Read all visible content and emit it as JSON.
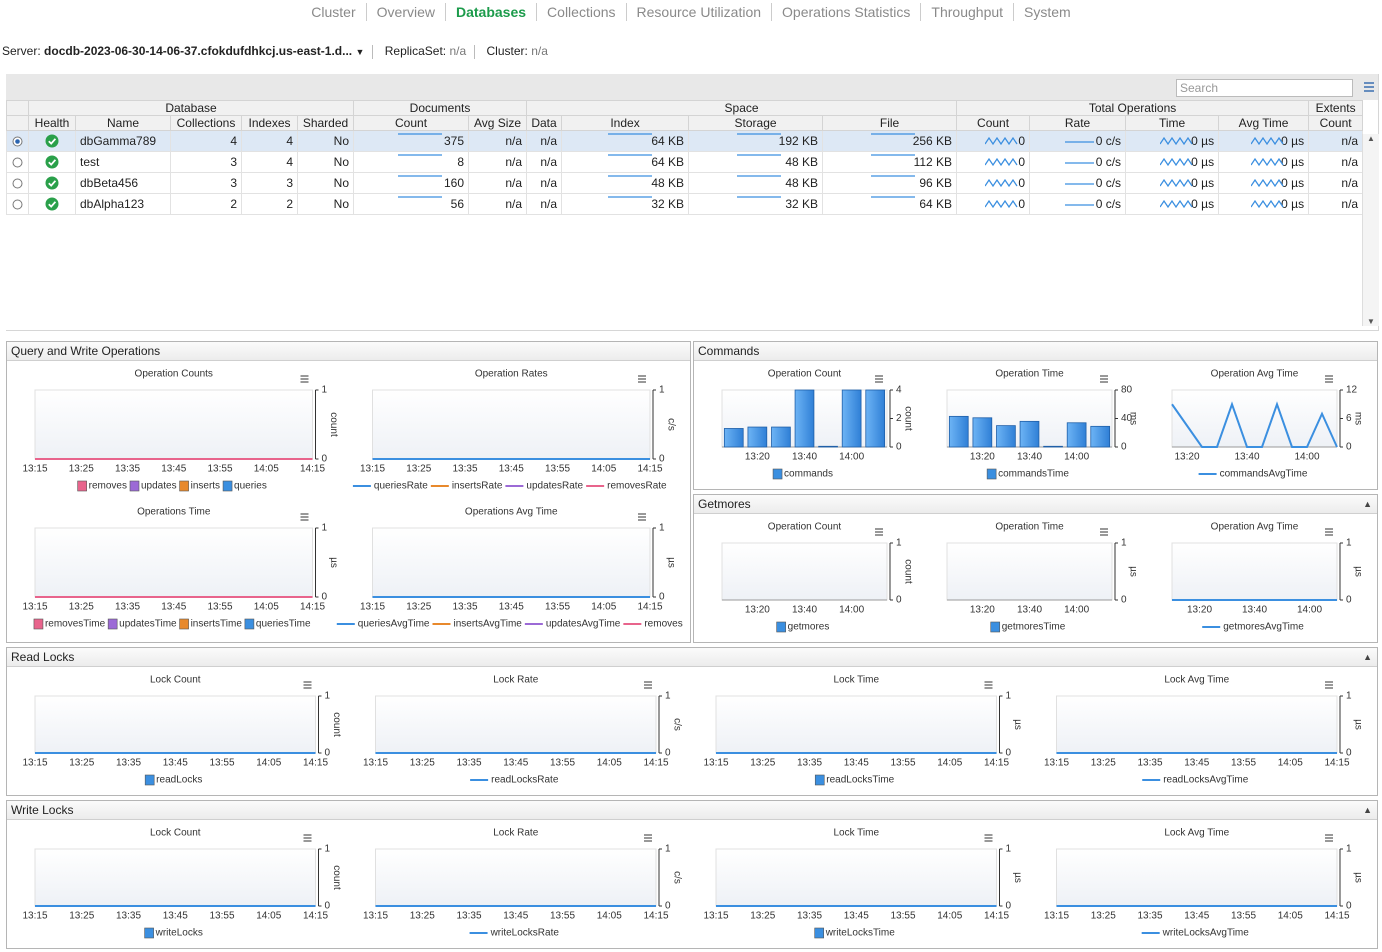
{
  "nav": {
    "tabs": [
      "Cluster",
      "Overview",
      "Databases",
      "Collections",
      "Resource Utilization",
      "Operations Statistics",
      "Throughput",
      "System"
    ],
    "active": 2
  },
  "server": {
    "label": "Server:",
    "name": "docdb-2023-06-30-14-06-37.cfokdufdhkcj.us-east-1.d...",
    "replicaset_label": "ReplicaSet:",
    "replicaset": "n/a",
    "cluster_label": "Cluster:",
    "cluster": "n/a"
  },
  "search": "Search",
  "table": {
    "groups": [
      "Database",
      "Documents",
      "Space",
      "Total Operations",
      "Extents"
    ],
    "columns": [
      "Health",
      "Name",
      "Collections",
      "Indexes",
      "Sharded",
      "Count",
      "Avg Size",
      "Data",
      "Index",
      "Storage",
      "File",
      "Count",
      "Rate",
      "Time",
      "Avg Time",
      "Count"
    ],
    "rows": [
      [
        "dbGamma789",
        "4",
        "4",
        "No",
        "375",
        "n/a",
        "n/a",
        "64 KB",
        "192 KB",
        "256 KB",
        "0",
        "0 c/s",
        "0 µs",
        "0 µs",
        "n/a"
      ],
      [
        "test",
        "3",
        "4",
        "No",
        "8",
        "n/a",
        "n/a",
        "64 KB",
        "48 KB",
        "112 KB",
        "0",
        "0 c/s",
        "0 µs",
        "0 µs",
        "n/a"
      ],
      [
        "dbBeta456",
        "3",
        "3",
        "No",
        "160",
        "n/a",
        "n/a",
        "48 KB",
        "48 KB",
        "96 KB",
        "0",
        "0 c/s",
        "0 µs",
        "0 µs",
        "n/a"
      ],
      [
        "dbAlpha123",
        "2",
        "2",
        "No",
        "56",
        "n/a",
        "n/a",
        "32 KB",
        "32 KB",
        "64 KB",
        "0",
        "0 c/s",
        "0 µs",
        "0 µs",
        "n/a"
      ]
    ]
  },
  "panels": [
    {
      "title": "Query and Write Operations",
      "collapsible": false,
      "charts": [
        {
          "type": "area",
          "title": "Operation Counts",
          "unit": "count",
          "ylim": [
            0,
            1
          ],
          "yticks": [
            0,
            1
          ],
          "categories": [
            "13:15",
            "13:25",
            "13:35",
            "13:45",
            "13:55",
            "14:05",
            "14:15"
          ],
          "series": [
            {
              "name": "removes",
              "color": "#e8648c",
              "values": [
                0,
                0,
                0,
                0,
                0,
                0,
                0
              ]
            },
            {
              "name": "updates",
              "color": "#9c6ad6",
              "values": [
                0,
                0,
                0,
                0,
                0,
                0,
                0
              ]
            },
            {
              "name": "inserts",
              "color": "#e8892c",
              "values": [
                0,
                0,
                0,
                0,
                0,
                0,
                0
              ]
            },
            {
              "name": "queries",
              "color": "#3b8fe0",
              "values": [
                0,
                0,
                0,
                0,
                0,
                0,
                0
              ]
            }
          ]
        },
        {
          "type": "line",
          "title": "Operation Rates",
          "unit": "c/s",
          "ylim": [
            0,
            1
          ],
          "yticks": [
            0,
            1
          ],
          "categories": [
            "13:15",
            "13:25",
            "13:35",
            "13:45",
            "13:55",
            "14:05",
            "14:15"
          ],
          "series": [
            {
              "name": "queriesRate",
              "color": "#3b8fe0",
              "values": [
                0,
                0,
                0,
                0,
                0,
                0,
                0
              ]
            },
            {
              "name": "insertsRate",
              "color": "#e8892c",
              "values": [
                0,
                0,
                0,
                0,
                0,
                0,
                0
              ]
            },
            {
              "name": "updatesRate",
              "color": "#9c6ad6",
              "values": [
                0,
                0,
                0,
                0,
                0,
                0,
                0
              ]
            },
            {
              "name": "removesRate",
              "color": "#e8648c",
              "values": [
                0,
                0,
                0,
                0,
                0,
                0,
                0
              ]
            }
          ]
        },
        {
          "type": "area",
          "title": "Operations Time",
          "unit": "µs",
          "ylim": [
            0,
            1
          ],
          "yticks": [
            0,
            1
          ],
          "categories": [
            "13:15",
            "13:25",
            "13:35",
            "13:45",
            "13:55",
            "14:05",
            "14:15"
          ],
          "series": [
            {
              "name": "removesTime",
              "color": "#e8648c",
              "values": [
                0,
                0,
                0,
                0,
                0,
                0,
                0
              ]
            },
            {
              "name": "updatesTime",
              "color": "#9c6ad6",
              "values": [
                0,
                0,
                0,
                0,
                0,
                0,
                0
              ]
            },
            {
              "name": "insertsTime",
              "color": "#e8892c",
              "values": [
                0,
                0,
                0,
                0,
                0,
                0,
                0
              ]
            },
            {
              "name": "queriesTime",
              "color": "#3b8fe0",
              "values": [
                0,
                0,
                0,
                0,
                0,
                0,
                0
              ]
            }
          ]
        },
        {
          "type": "line",
          "title": "Operations Avg Time",
          "unit": "µs",
          "ylim": [
            0,
            1
          ],
          "yticks": [
            0,
            1
          ],
          "categories": [
            "13:15",
            "13:25",
            "13:35",
            "13:45",
            "13:55",
            "14:05",
            "14:15"
          ],
          "series": [
            {
              "name": "queriesAvgTime",
              "color": "#3b8fe0",
              "values": [
                0,
                0,
                0,
                0,
                0,
                0,
                0
              ]
            },
            {
              "name": "insertsAvgTime",
              "color": "#e8892c",
              "values": [
                0,
                0,
                0,
                0,
                0,
                0,
                0
              ]
            },
            {
              "name": "updatesAvgTime",
              "color": "#9c6ad6",
              "values": [
                0,
                0,
                0,
                0,
                0,
                0,
                0
              ]
            },
            {
              "name": "removes",
              "color": "#e8648c",
              "values": [
                0,
                0,
                0,
                0,
                0,
                0,
                0
              ]
            }
          ]
        }
      ]
    },
    {
      "title": "Commands",
      "collapsible": false,
      "charts": [
        {
          "type": "bar",
          "title": "Operation Count",
          "unit": "count",
          "ylim": [
            0,
            4
          ],
          "yticks": [
            0,
            2,
            4
          ],
          "categories": [
            null,
            "13:20",
            null,
            "13:40",
            null,
            "14:00",
            null
          ],
          "series": [
            {
              "name": "commands",
              "color": "#3b8fe0",
              "values": [
                1.3,
                1.4,
                1.4,
                4,
                0.05,
                4,
                4
              ]
            }
          ]
        },
        {
          "type": "bar",
          "title": "Operation Time",
          "unit": "ms",
          "ylim": [
            0,
            80
          ],
          "yticks": [
            0,
            40,
            80
          ],
          "categories": [
            null,
            "13:20",
            null,
            "13:40",
            null,
            "14:00",
            null
          ],
          "series": [
            {
              "name": "commandsTime",
              "color": "#3b8fe0",
              "values": [
                43,
                41,
                30,
                36,
                1,
                34,
                29
              ]
            }
          ]
        },
        {
          "type": "line",
          "title": "Operation Avg Time",
          "unit": "ms",
          "ylim": [
            0,
            12
          ],
          "yticks": [
            0,
            6,
            12
          ],
          "categories": [
            null,
            "13:20",
            null,
            null,
            null,
            "13:40",
            null,
            null,
            null,
            "14:00",
            null,
            null
          ],
          "series": [
            {
              "name": "commandsAvgTime",
              "color": "#3b8fe0",
              "values": [
                9,
                4.5,
                0,
                0,
                9,
                0,
                0,
                9,
                0,
                0,
                7,
                0
              ]
            }
          ]
        }
      ]
    },
    {
      "title": "Getmores",
      "collapsible": true,
      "charts": [
        {
          "type": "bar",
          "title": "Operation Count",
          "unit": "count",
          "ylim": [
            0,
            1
          ],
          "yticks": [
            0,
            1
          ],
          "categories": [
            null,
            "13:20",
            null,
            "13:40",
            null,
            "14:00",
            null
          ],
          "series": [
            {
              "name": "getmores",
              "color": "#3b8fe0",
              "values": [
                0,
                0,
                0,
                0,
                0,
                0,
                0
              ]
            }
          ]
        },
        {
          "type": "bar",
          "title": "Operation Time",
          "unit": "µs",
          "ylim": [
            0,
            1
          ],
          "yticks": [
            0,
            1
          ],
          "categories": [
            null,
            "13:20",
            null,
            "13:40",
            null,
            "14:00",
            null
          ],
          "series": [
            {
              "name": "getmoresTime",
              "color": "#3b8fe0",
              "values": [
                0,
                0,
                0,
                0,
                0,
                0,
                0
              ]
            }
          ]
        },
        {
          "type": "line",
          "title": "Operation Avg Time",
          "unit": "µs",
          "ylim": [
            0,
            1
          ],
          "yticks": [
            0,
            1
          ],
          "categories": [
            null,
            "13:20",
            null,
            "13:40",
            null,
            "14:00",
            null
          ],
          "series": [
            {
              "name": "getmoresAvgTime",
              "color": "#3b8fe0",
              "values": [
                0,
                0,
                0,
                0,
                0,
                0,
                0
              ]
            }
          ]
        }
      ]
    },
    {
      "title": "Read Locks",
      "collapsible": true,
      "charts": [
        {
          "type": "area",
          "title": "Lock Count",
          "unit": "count",
          "ylim": [
            0,
            1
          ],
          "yticks": [
            0,
            1
          ],
          "categories": [
            "13:15",
            "13:25",
            "13:35",
            "13:45",
            "13:55",
            "14:05",
            "14:15"
          ],
          "series": [
            {
              "name": "readLocks",
              "color": "#3b8fe0",
              "values": [
                0,
                0,
                0,
                0,
                0,
                0,
                0
              ]
            }
          ]
        },
        {
          "type": "line",
          "title": "Lock Rate",
          "unit": "c/s",
          "ylim": [
            0,
            1
          ],
          "yticks": [
            0,
            1
          ],
          "categories": [
            "13:15",
            "13:25",
            "13:35",
            "13:45",
            "13:55",
            "14:05",
            "14:15"
          ],
          "series": [
            {
              "name": "readLocksRate",
              "color": "#3b8fe0",
              "values": [
                0,
                0,
                0,
                0,
                0,
                0,
                0
              ]
            }
          ]
        },
        {
          "type": "area",
          "title": "Lock Time",
          "unit": "µs",
          "ylim": [
            0,
            1
          ],
          "yticks": [
            0,
            1
          ],
          "categories": [
            "13:15",
            "13:25",
            "13:35",
            "13:45",
            "13:55",
            "14:05",
            "14:15"
          ],
          "series": [
            {
              "name": "readLocksTime",
              "color": "#3b8fe0",
              "values": [
                0,
                0,
                0,
                0,
                0,
                0,
                0
              ]
            }
          ]
        },
        {
          "type": "line",
          "title": "Lock Avg Time",
          "unit": "µs",
          "ylim": [
            0,
            1
          ],
          "yticks": [
            0,
            1
          ],
          "categories": [
            "13:15",
            "13:25",
            "13:35",
            "13:45",
            "13:55",
            "14:05",
            "14:15"
          ],
          "series": [
            {
              "name": "readLocksAvgTime",
              "color": "#3b8fe0",
              "values": [
                0,
                0,
                0,
                0,
                0,
                0,
                0
              ]
            }
          ]
        }
      ]
    },
    {
      "title": "Write Locks",
      "collapsible": true,
      "charts": [
        {
          "type": "area",
          "title": "Lock Count",
          "unit": "count",
          "ylim": [
            0,
            1
          ],
          "yticks": [
            0,
            1
          ],
          "categories": [
            "13:15",
            "13:25",
            "13:35",
            "13:45",
            "13:55",
            "14:05",
            "14:15"
          ],
          "series": [
            {
              "name": "writeLocks",
              "color": "#3b8fe0",
              "values": [
                0,
                0,
                0,
                0,
                0,
                0,
                0
              ]
            }
          ]
        },
        {
          "type": "line",
          "title": "Lock Rate",
          "unit": "c/s",
          "ylim": [
            0,
            1
          ],
          "yticks": [
            0,
            1
          ],
          "categories": [
            "13:15",
            "13:25",
            "13:35",
            "13:45",
            "13:55",
            "14:05",
            "14:15"
          ],
          "series": [
            {
              "name": "writeLocksRate",
              "color": "#3b8fe0",
              "values": [
                0,
                0,
                0,
                0,
                0,
                0,
                0
              ]
            }
          ]
        },
        {
          "type": "area",
          "title": "Lock Time",
          "unit": "µs",
          "ylim": [
            0,
            1
          ],
          "yticks": [
            0,
            1
          ],
          "categories": [
            "13:15",
            "13:25",
            "13:35",
            "13:45",
            "13:55",
            "14:05",
            "14:15"
          ],
          "series": [
            {
              "name": "writeLocksTime",
              "color": "#3b8fe0",
              "values": [
                0,
                0,
                0,
                0,
                0,
                0,
                0
              ]
            }
          ]
        },
        {
          "type": "line",
          "title": "Lock Avg Time",
          "unit": "µs",
          "ylim": [
            0,
            1
          ],
          "yticks": [
            0,
            1
          ],
          "categories": [
            "13:15",
            "13:25",
            "13:35",
            "13:45",
            "13:55",
            "14:05",
            "14:15"
          ],
          "series": [
            {
              "name": "writeLocksAvgTime",
              "color": "#3b8fe0",
              "values": [
                0,
                0,
                0,
                0,
                0,
                0,
                0
              ]
            }
          ]
        }
      ]
    }
  ]
}
